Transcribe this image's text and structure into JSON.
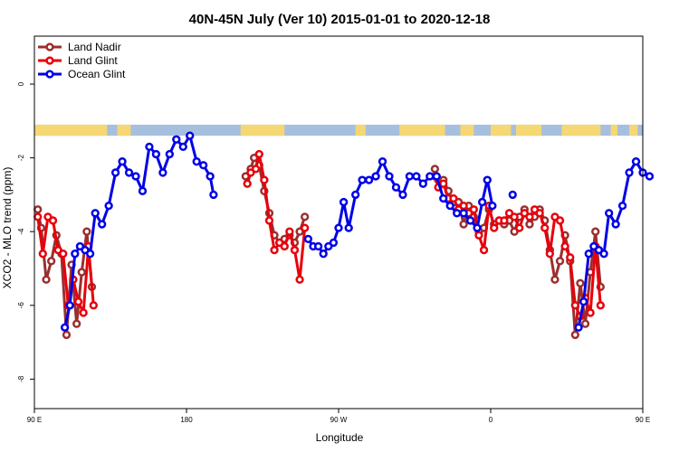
{
  "chart_data": {
    "type": "line",
    "title": "40N-45N July (Ver 10)   2015-01-01 to 2020-12-18",
    "xlabel": "Longitude",
    "ylabel": "XCO2 - MLO trend (ppm)",
    "xlim": [
      90,
      450
    ],
    "ylim": [
      -8.8,
      1.3
    ],
    "x_ticks": [
      {
        "value": 90,
        "label": "90 E"
      },
      {
        "value": 180,
        "label": "180"
      },
      {
        "value": 270,
        "label": "90 W"
      },
      {
        "value": 360,
        "label": "0"
      },
      {
        "value": 450,
        "label": "90 E"
      },
      {
        "value": 540,
        "label": "180"
      }
    ],
    "y_ticks": [
      {
        "value": 0,
        "label": "0"
      },
      {
        "value": -2,
        "label": "-2"
      },
      {
        "value": -4,
        "label": "-4"
      },
      {
        "value": -6,
        "label": "-6"
      },
      {
        "value": -8,
        "label": "-8"
      }
    ],
    "legend_position": "top-left",
    "grid": false,
    "land_ocean_strip": {
      "y_range": [
        -1.1,
        -1.4
      ],
      "land_color": "#f5d773",
      "ocean_color": "#a7bfdf",
      "land_ranges": [
        [
          90,
          133
        ],
        [
          139,
          147
        ],
        [
          212,
          238
        ],
        [
          280,
          286
        ],
        [
          306,
          333
        ],
        [
          342,
          350
        ],
        [
          360,
          372
        ],
        [
          375,
          390
        ],
        [
          402,
          425
        ],
        [
          431,
          435
        ],
        [
          442,
          447
        ]
      ]
    },
    "series": [
      {
        "name": "Land Nadir",
        "color": "#9b2f2f",
        "segments": [
          [
            [
              92,
              -3.4
            ],
            [
              94,
              -3.9
            ],
            [
              97,
              -5.3
            ],
            [
              100,
              -4.8
            ],
            [
              103,
              -4.1
            ],
            [
              106,
              -4.6
            ],
            [
              109,
              -6.8
            ],
            [
              112,
              -4.9
            ],
            [
              115,
              -6.5
            ],
            [
              118,
              -5.1
            ],
            [
              121,
              -4.0
            ],
            [
              124,
              -5.5
            ]
          ],
          [
            [
              215,
              -2.5
            ],
            [
              218,
              -2.3
            ],
            [
              220,
              -2.0
            ],
            [
              223,
              -2.2
            ],
            [
              226,
              -2.9
            ],
            [
              229,
              -3.5
            ],
            [
              232,
              -4.1
            ],
            [
              235,
              -4.3
            ],
            [
              238,
              -4.2
            ],
            [
              241,
              -4.1
            ],
            [
              244,
              -4.3
            ],
            [
              247,
              -4.0
            ],
            [
              250,
              -3.6
            ]
          ],
          [
            [
              327,
              -2.3
            ],
            [
              329,
              -2.6
            ],
            [
              332,
              -2.6
            ],
            [
              335,
              -2.9
            ],
            [
              338,
              -3.2
            ],
            [
              341,
              -3.2
            ],
            [
              344,
              -3.8
            ],
            [
              347,
              -3.3
            ],
            [
              350,
              -3.6
            ],
            [
              353,
              -4.0
            ],
            [
              356,
              -3.9
            ],
            [
              359,
              -3.4
            ],
            [
              362,
              -3.8
            ],
            [
              365,
              -3.7
            ],
            [
              368,
              -3.8
            ],
            [
              371,
              -3.7
            ],
            [
              374,
              -4.0
            ],
            [
              377,
              -3.6
            ],
            [
              380,
              -3.4
            ],
            [
              383,
              -3.8
            ],
            [
              386,
              -3.6
            ],
            [
              389,
              -3.4
            ],
            [
              392,
              -3.7
            ],
            [
              395,
              -4.5
            ],
            [
              398,
              -5.3
            ],
            [
              401,
              -4.8
            ],
            [
              404,
              -4.1
            ],
            [
              407,
              -4.8
            ],
            [
              410,
              -6.8
            ],
            [
              413,
              -5.4
            ],
            [
              416,
              -6.5
            ],
            [
              419,
              -5.1
            ],
            [
              422,
              -4.0
            ],
            [
              425,
              -5.5
            ]
          ]
        ]
      },
      {
        "name": "Land Glint",
        "color": "#e8000b",
        "segments": [
          [
            [
              92,
              -3.6
            ],
            [
              95,
              -4.6
            ],
            [
              98,
              -3.6
            ],
            [
              101,
              -3.7
            ],
            [
              104,
              -4.5
            ],
            [
              107,
              -4.6
            ],
            [
              110,
              -6.0
            ],
            [
              113,
              -5.3
            ],
            [
              116,
              -5.9
            ],
            [
              119,
              -6.2
            ],
            [
              122,
              -4.4
            ],
            [
              125,
              -6.0
            ]
          ],
          [
            [
              216,
              -2.7
            ],
            [
              218,
              -2.4
            ],
            [
              221,
              -2.3
            ],
            [
              223,
              -1.9
            ],
            [
              226,
              -2.6
            ],
            [
              229,
              -3.7
            ],
            [
              232,
              -4.5
            ],
            [
              235,
              -4.3
            ],
            [
              238,
              -4.4
            ],
            [
              241,
              -4.0
            ],
            [
              244,
              -4.5
            ],
            [
              247,
              -5.3
            ],
            [
              250,
              -3.9
            ]
          ],
          [
            [
              327,
              -2.5
            ],
            [
              329,
              -2.8
            ],
            [
              332,
              -2.7
            ],
            [
              335,
              -3.1
            ],
            [
              338,
              -3.1
            ],
            [
              341,
              -3.4
            ],
            [
              344,
              -3.3
            ],
            [
              347,
              -3.5
            ],
            [
              350,
              -3.4
            ],
            [
              353,
              -4.1
            ],
            [
              356,
              -4.5
            ],
            [
              359,
              -3.3
            ],
            [
              362,
              -3.9
            ],
            [
              365,
              -3.7
            ],
            [
              368,
              -3.7
            ],
            [
              371,
              -3.5
            ],
            [
              374,
              -3.6
            ],
            [
              377,
              -3.9
            ],
            [
              380,
              -3.5
            ],
            [
              383,
              -3.6
            ],
            [
              386,
              -3.4
            ],
            [
              389,
              -3.5
            ],
            [
              392,
              -3.9
            ],
            [
              395,
              -4.6
            ],
            [
              398,
              -3.6
            ],
            [
              401,
              -3.7
            ],
            [
              404,
              -4.4
            ],
            [
              407,
              -4.7
            ],
            [
              410,
              -6.0
            ],
            [
              413,
              -6.3
            ],
            [
              416,
              -5.8
            ],
            [
              419,
              -6.2
            ],
            [
              422,
              -4.4
            ],
            [
              425,
              -6.0
            ]
          ]
        ]
      },
      {
        "name": "Ocean Glint",
        "color": "#0000e6",
        "segments": [
          [
            [
              108,
              -6.6
            ],
            [
              111,
              -6.0
            ],
            [
              114,
              -4.6
            ],
            [
              117,
              -4.4
            ],
            [
              120,
              -4.5
            ],
            [
              123,
              -4.6
            ],
            [
              126,
              -3.5
            ],
            [
              130,
              -3.8
            ],
            [
              134,
              -3.3
            ],
            [
              138,
              -2.4
            ],
            [
              142,
              -2.1
            ],
            [
              146,
              -2.4
            ],
            [
              150,
              -2.5
            ],
            [
              154,
              -2.9
            ],
            [
              158,
              -1.7
            ],
            [
              162,
              -1.9
            ],
            [
              166,
              -2.4
            ],
            [
              170,
              -1.9
            ],
            [
              174,
              -1.5
            ],
            [
              178,
              -1.7
            ],
            [
              182,
              -1.4
            ],
            [
              186,
              -2.1
            ],
            [
              190,
              -2.2
            ],
            [
              194,
              -2.5
            ],
            [
              196,
              -3.0
            ]
          ],
          [
            [
              252,
              -4.2
            ],
            [
              255,
              -4.4
            ],
            [
              258,
              -4.4
            ],
            [
              261,
              -4.6
            ],
            [
              264,
              -4.4
            ],
            [
              267,
              -4.3
            ],
            [
              270,
              -3.9
            ],
            [
              273,
              -3.2
            ],
            [
              276,
              -3.9
            ],
            [
              280,
              -3.0
            ],
            [
              284,
              -2.6
            ],
            [
              288,
              -2.6
            ],
            [
              292,
              -2.5
            ],
            [
              296,
              -2.1
            ],
            [
              300,
              -2.5
            ],
            [
              304,
              -2.8
            ],
            [
              308,
              -3.0
            ],
            [
              312,
              -2.5
            ],
            [
              316,
              -2.5
            ],
            [
              320,
              -2.7
            ],
            [
              324,
              -2.5
            ],
            [
              328,
              -2.5
            ],
            [
              332,
              -3.1
            ],
            [
              336,
              -3.3
            ],
            [
              340,
              -3.5
            ],
            [
              344,
              -3.5
            ],
            [
              348,
              -3.7
            ],
            [
              352,
              -3.9
            ],
            [
              355,
              -3.2
            ],
            [
              358,
              -2.6
            ],
            [
              361,
              -3.3
            ]
          ],
          [
            [
              373,
              -3.0
            ]
          ],
          [
            [
              412,
              -6.6
            ],
            [
              415,
              -5.9
            ],
            [
              418,
              -4.6
            ],
            [
              421,
              -4.4
            ],
            [
              424,
              -4.5
            ],
            [
              427,
              -4.6
            ],
            [
              430,
              -3.5
            ],
            [
              434,
              -3.8
            ],
            [
              438,
              -3.3
            ],
            [
              442,
              -2.4
            ],
            [
              446,
              -2.1
            ],
            [
              450,
              -2.4
            ],
            [
              454,
              -2.5
            ]
          ]
        ]
      }
    ]
  }
}
